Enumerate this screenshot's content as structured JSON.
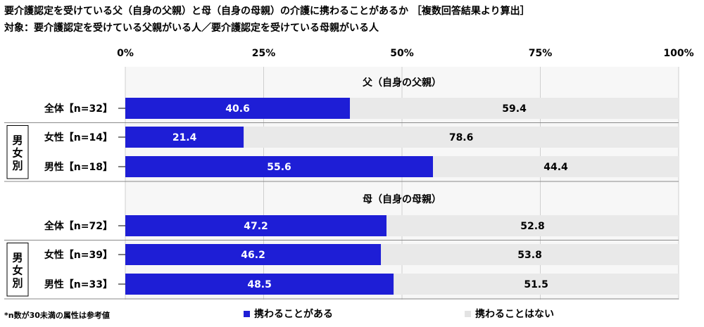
{
  "title": "要介護認定を受けている父（自身の父親）と母（自身の母親）の介護に携わることがあるか ［複数回答結果より算出］",
  "subtitle": "対象：要介護認定を受けている父親がいる人／要介護認定を受けている母親がいる人",
  "footnote": "*n数が30未満の属性は参考値",
  "colors": {
    "involved": "#1e1ed6",
    "not_involved": "#ececec",
    "grid": "#cfcfcf",
    "frame": "#8a8a8a"
  },
  "chart_data": {
    "type": "bar",
    "orientation": "horizontal",
    "stacked": true,
    "xlim": [
      0,
      100
    ],
    "ticks": [
      "0%",
      "25%",
      "50%",
      "75%",
      "100%"
    ],
    "legend": [
      "携わることがある",
      "携わることはない"
    ],
    "group_label": "男女別",
    "sections": [
      {
        "title": "父（自身の父親）",
        "rows": [
          {
            "label": "全体【n=32】",
            "values": [
              40.6,
              59.4
            ]
          },
          {
            "label": "女性【n=14】",
            "values": [
              21.4,
              78.6
            ]
          },
          {
            "label": "男性【n=18】",
            "values": [
              55.6,
              44.4
            ]
          }
        ]
      },
      {
        "title": "母（自身の母親）",
        "rows": [
          {
            "label": "全体【n=72】",
            "values": [
              47.2,
              52.8
            ]
          },
          {
            "label": "女性【n=39】",
            "values": [
              46.2,
              53.8
            ]
          },
          {
            "label": "男性【n=33】",
            "values": [
              48.5,
              51.5
            ]
          }
        ]
      }
    ]
  }
}
